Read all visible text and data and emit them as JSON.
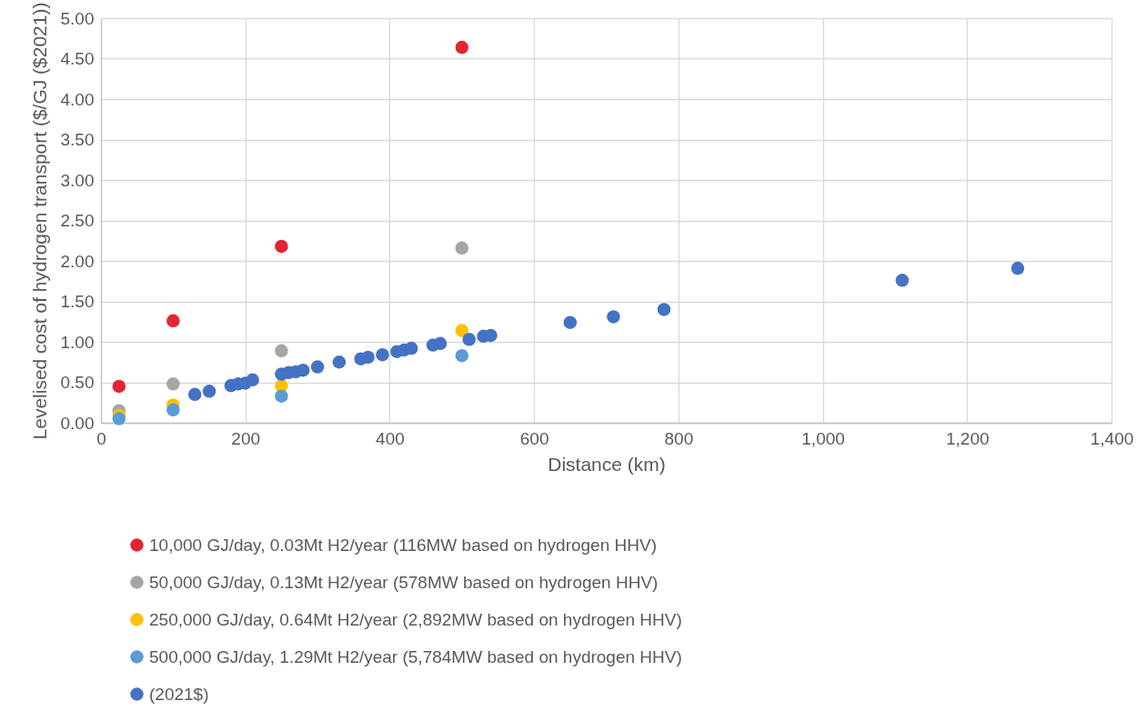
{
  "chart_data": {
    "type": "scatter",
    "xlabel": "Distance (km)",
    "ylabel": "Levelised cost of hydrogen transport ($/GJ ($2021))",
    "xlim": [
      0,
      1400
    ],
    "xticks": [
      0,
      200,
      400,
      600,
      800,
      {
        "value": 1000,
        "label": "1,000"
      },
      {
        "value": 1200,
        "label": "1,200"
      },
      {
        "value": 1400,
        "label": "1,400"
      }
    ],
    "ylim": [
      0,
      5
    ],
    "yticks": [
      {
        "value": 0,
        "label": "0.00"
      },
      {
        "value": 0.5,
        "label": "0.50"
      },
      {
        "value": 1,
        "label": "1.00"
      },
      {
        "value": 1.5,
        "label": "1.50"
      },
      {
        "value": 2,
        "label": "2.00"
      },
      {
        "value": 2.5,
        "label": "2.50"
      },
      {
        "value": 3,
        "label": "3.00"
      },
      {
        "value": 3.5,
        "label": "3.50"
      },
      {
        "value": 4,
        "label": "4.00"
      },
      {
        "value": 4.5,
        "label": "4.50"
      },
      {
        "value": 5,
        "label": "5.00"
      }
    ],
    "grid": true,
    "legend": "bottom",
    "marker": "circle",
    "series": [
      {
        "name": "10,000 GJ/day, 0.03Mt H2/year  (116MW based on hydrogen HHV)",
        "color": "#e32431",
        "x": [
          25,
          100,
          250,
          500
        ],
        "values": [
          0.45,
          1.26,
          2.18,
          4.64
        ]
      },
      {
        "name": "50,000 GJ/day, 0.13Mt H2/year  (578MW based on hydrogen HHV)",
        "color": "#a5a5a5",
        "x": [
          25,
          100,
          250,
          500
        ],
        "values": [
          0.15,
          0.48,
          0.89,
          2.16
        ]
      },
      {
        "name": "250,000 GJ/day, 0.64Mt H2/year  (2,892MW based on hydrogen HHV)",
        "color": "#ffc000",
        "x": [
          25,
          100,
          250,
          500
        ],
        "values": [
          0.09,
          0.22,
          0.46,
          1.14
        ]
      },
      {
        "name": "500,000 GJ/day, 1.29Mt H2/year  (5,784MW based on hydrogen HHV)",
        "color": "#5b9bd5",
        "x": [
          25,
          100,
          250,
          500
        ],
        "values": [
          0.05,
          0.16,
          0.33,
          0.83
        ]
      },
      {
        "name": "(2021$)",
        "color": "#4472c4",
        "x": [
          130,
          150,
          180,
          190,
          200,
          210,
          250,
          260,
          270,
          280,
          300,
          330,
          360,
          370,
          390,
          410,
          420,
          430,
          460,
          470,
          510,
          530,
          540,
          650,
          710,
          780,
          1110,
          1270
        ],
        "values": [
          0.35,
          0.39,
          0.46,
          0.48,
          0.49,
          0.53,
          0.6,
          0.62,
          0.63,
          0.65,
          0.69,
          0.75,
          0.79,
          0.81,
          0.84,
          0.88,
          0.9,
          0.92,
          0.96,
          0.98,
          1.03,
          1.07,
          1.08,
          1.24,
          1.31,
          1.4,
          1.76,
          1.91
        ]
      }
    ]
  }
}
